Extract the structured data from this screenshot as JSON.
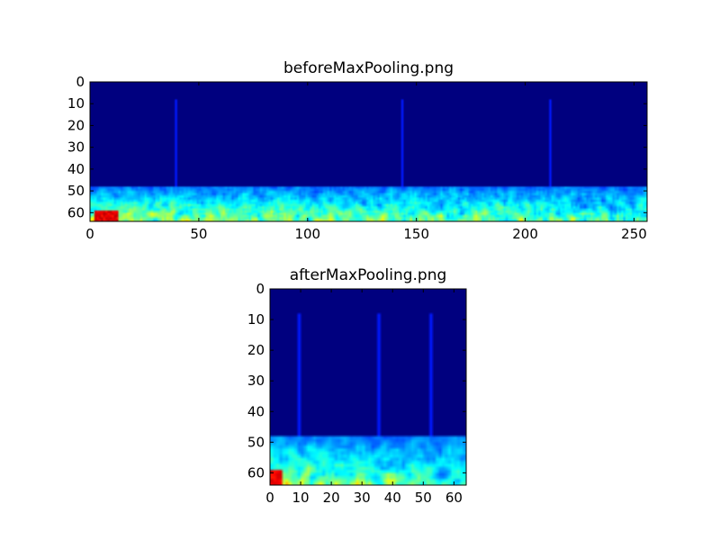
{
  "chart_data": [
    {
      "type": "heatmap",
      "title": "beforeMaxPooling.png",
      "colormap": "jet",
      "shape": [
        64,
        256
      ],
      "xlim": [
        0,
        256
      ],
      "ylim": [
        64,
        0
      ],
      "xticks": [
        0,
        50,
        100,
        150,
        200,
        250
      ],
      "yticks": [
        0,
        10,
        20,
        30,
        40,
        50,
        60
      ],
      "background_value_color": "#00007f",
      "vertical_stripes": [
        {
          "x": 39,
          "y": [
            8,
            48
          ]
        },
        {
          "x": 143,
          "y": [
            8,
            48
          ]
        },
        {
          "x": 211,
          "y": [
            8,
            48
          ]
        }
      ],
      "noise_band_rows": [
        48,
        64
      ],
      "hot_spot": {
        "x": [
          2,
          12
        ],
        "y": [
          59,
          64
        ],
        "color": "red"
      }
    },
    {
      "type": "heatmap",
      "title": "afterMaxPooling.png",
      "colormap": "jet",
      "shape": [
        64,
        64
      ],
      "xlim": [
        0,
        64
      ],
      "ylim": [
        64,
        0
      ],
      "xticks": [
        0,
        10,
        20,
        30,
        40,
        50,
        60
      ],
      "yticks": [
        0,
        10,
        20,
        30,
        40,
        50,
        60
      ],
      "background_value_color": "#00007f",
      "vertical_stripes": [
        {
          "x": 9,
          "y": [
            8,
            48
          ]
        },
        {
          "x": 35,
          "y": [
            8,
            48
          ]
        },
        {
          "x": 52,
          "y": [
            8,
            48
          ]
        }
      ],
      "noise_band_rows": [
        48,
        64
      ],
      "hot_spot": {
        "x": [
          0,
          3
        ],
        "y": [
          59,
          63
        ],
        "color": "red"
      }
    }
  ]
}
